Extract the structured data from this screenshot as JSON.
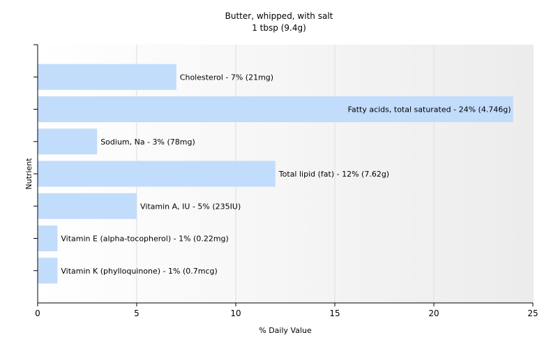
{
  "chart_data": {
    "type": "bar",
    "orientation": "horizontal",
    "title": "Butter, whipped, with salt",
    "subtitle": "1 tbsp (9.4g)",
    "xlabel": "% Daily Value",
    "ylabel": "Nutrient",
    "xlim": [
      0,
      25
    ],
    "xticks": [
      0,
      5,
      10,
      15,
      20,
      25
    ],
    "grid": true,
    "bar_color": "#c2dcfc",
    "categories": [
      "Cholesterol",
      "Fatty acids, total saturated",
      "Sodium, Na",
      "Total lipid (fat)",
      "Vitamin A, IU",
      "Vitamin E (alpha-tocopherol)",
      "Vitamin K (phylloquinone)"
    ],
    "values": [
      7,
      24,
      3,
      12,
      5,
      1,
      1
    ],
    "labels": [
      "Cholesterol - 7% (21mg)",
      "Fatty acids, total saturated - 24% (4.746g)",
      "Sodium, Na - 3% (78mg)",
      "Total lipid (fat) - 12% (7.62g)",
      "Vitamin A, IU - 5% (235IU)",
      "Vitamin E (alpha-tocopherol) - 1% (0.22mg)",
      "Vitamin K (phylloquinone) - 1% (0.7mcg)"
    ]
  }
}
